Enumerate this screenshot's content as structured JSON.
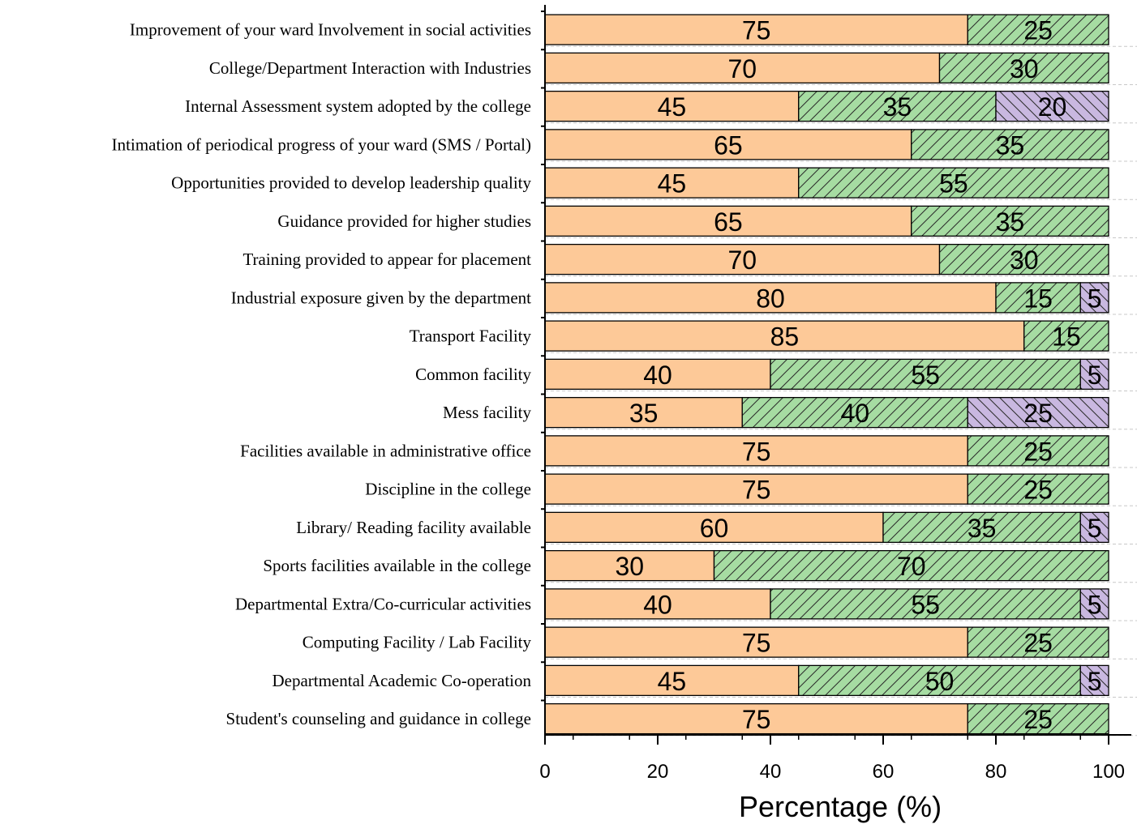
{
  "chart_data": {
    "type": "bar",
    "orientation": "horizontal",
    "stacked": true,
    "xlabel": "Percentage (%)",
    "ylabel": "",
    "title": "",
    "xlim": [
      0,
      100
    ],
    "xticks": [
      0,
      20,
      40,
      60,
      80,
      100
    ],
    "grid": "horizontal dashed",
    "categories": [
      "Improvement  of your  ward Involvement in social activities",
      "College/Department Interaction with Industries",
      "Internal Assessment system adopted by the college",
      "Intimation of periodical progress of your ward (SMS / Portal)",
      "Opportunities provided to develop leadership quality",
      "Guidance provided for higher studies",
      "Training provided to appear for placement",
      "Industrial exposure given by the department",
      "Transport Facility",
      "Common facility",
      "Mess facility",
      "Facilities available in administrative office",
      "Discipline in the college",
      "Library/ Reading facility available",
      "Sports facilities available in the college",
      "Departmental Extra/Co-curricular activities",
      "Computing Facility / Lab Facility",
      "Departmental Academic Co-operation",
      "Student's counseling and guidance in college"
    ],
    "series": [
      {
        "color": "#fdc998",
        "pattern": "solid",
        "values": [
          75,
          70,
          45,
          65,
          45,
          65,
          70,
          80,
          85,
          40,
          35,
          75,
          75,
          60,
          30,
          40,
          75,
          45,
          75
        ]
      },
      {
        "color": "#a6dca2",
        "pattern": "forward-hatch",
        "values": [
          25,
          30,
          35,
          35,
          55,
          35,
          30,
          15,
          15,
          55,
          40,
          25,
          25,
          35,
          70,
          55,
          25,
          50,
          25
        ]
      },
      {
        "color": "#c9b8e0",
        "pattern": "back-hatch",
        "values": [
          0,
          0,
          20,
          0,
          0,
          0,
          0,
          5,
          0,
          5,
          25,
          0,
          0,
          5,
          0,
          5,
          0,
          5,
          0
        ]
      }
    ]
  }
}
